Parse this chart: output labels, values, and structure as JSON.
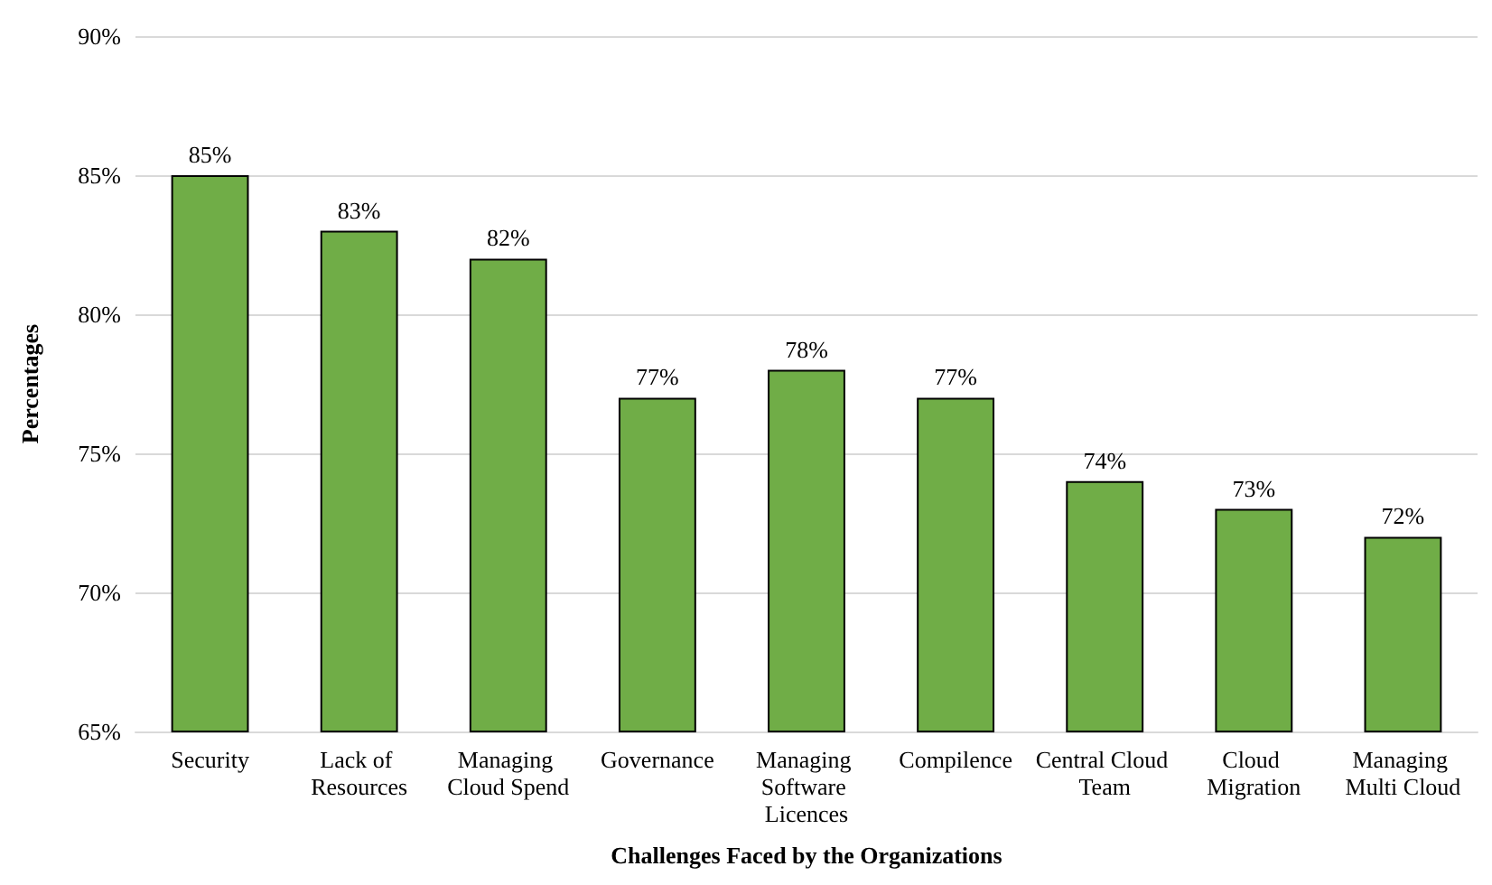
{
  "chart_data": {
    "type": "bar",
    "xlabel": "Challenges Faced by the Organizations",
    "ylabel": "Percentages",
    "categories": [
      "Security",
      "Lack of Resources",
      "Managing Cloud Spend",
      "Governance",
      "Managing Software Licences",
      "Compilence",
      "Central Cloud Team",
      "Cloud Migration",
      "Managing Multi Cloud"
    ],
    "values": [
      85,
      83,
      82,
      77,
      78,
      77,
      74,
      73,
      72
    ],
    "value_labels": [
      "85%",
      "83%",
      "82%",
      "77%",
      "78%",
      "77%",
      "74%",
      "73%",
      "72%"
    ],
    "color": "#70ad47",
    "ylim": [
      65,
      90
    ],
    "yticks": [
      {
        "value": 65,
        "label": "65%"
      },
      {
        "value": 70,
        "label": "70%"
      },
      {
        "value": 75,
        "label": "75%"
      },
      {
        "value": 80,
        "label": "80%"
      },
      {
        "value": 85,
        "label": "85%"
      },
      {
        "value": 90,
        "label": "90%"
      }
    ],
    "grid": "y"
  }
}
